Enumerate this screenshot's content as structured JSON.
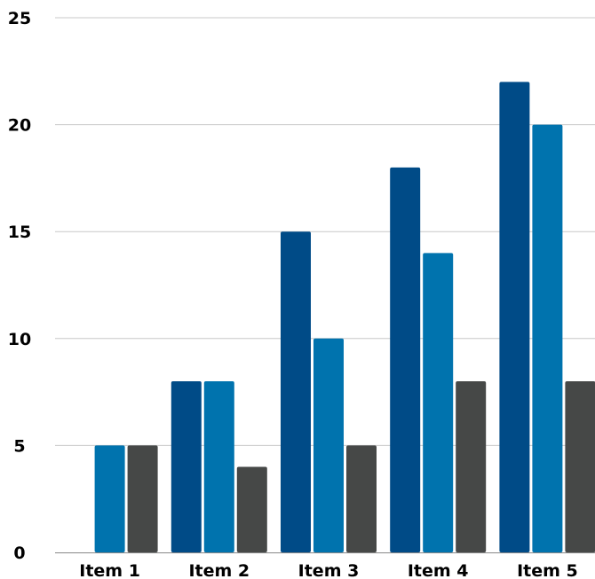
{
  "chart_data": {
    "type": "bar",
    "categories": [
      "Item 1",
      "Item 2",
      "Item 3",
      "Item 4",
      "Item 5"
    ],
    "series": [
      {
        "values": [
          0,
          8,
          15,
          18,
          22
        ],
        "color": "#004b87"
      },
      {
        "values": [
          5,
          8,
          10,
          14,
          20
        ],
        "color": "#0073ae"
      },
      {
        "values": [
          5,
          4,
          5,
          8,
          8
        ],
        "color": "#464847"
      }
    ],
    "yticks": [
      0,
      5,
      10,
      15,
      20,
      25
    ],
    "ylim": [
      0,
      25
    ],
    "grid": true,
    "gridline_color": "#c8c8c8",
    "axis_color": "#888888"
  }
}
